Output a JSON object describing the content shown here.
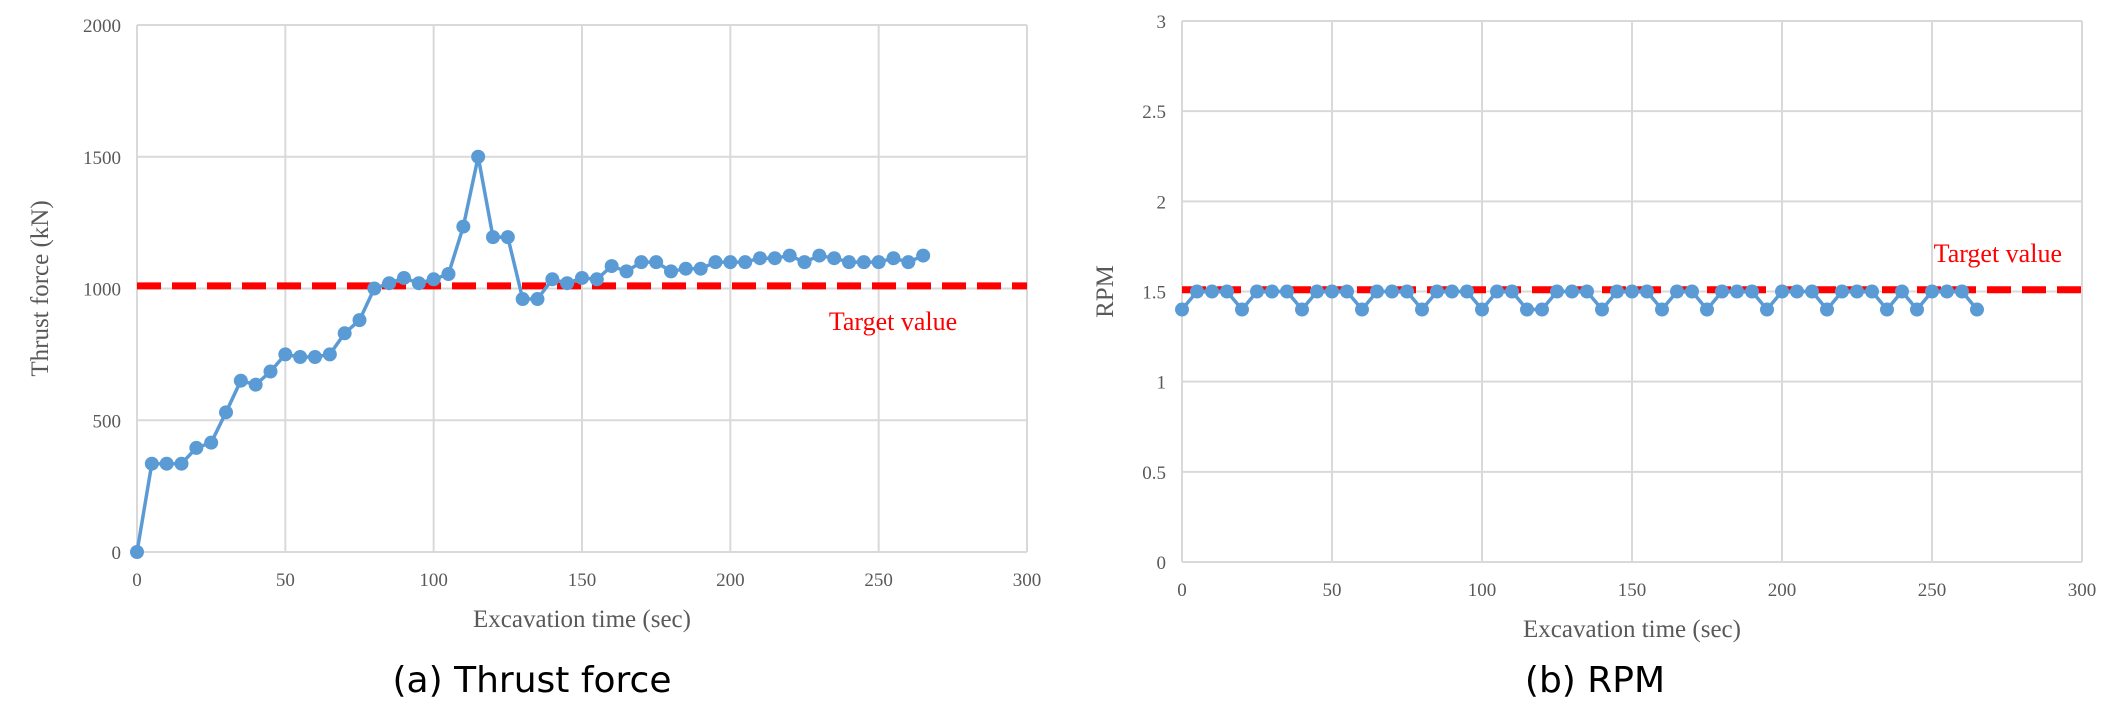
{
  "colors": {
    "series": "#5b9bd5",
    "target": "#ff0000",
    "grid": "#d9d9d9",
    "text": "#595959"
  },
  "chart_data": [
    {
      "type": "line",
      "caption": "(a) Thrust force",
      "xlabel": "Excavation time (sec)",
      "ylabel": "Thrust force (kN)",
      "xlim": [
        0,
        300
      ],
      "ylim": [
        0,
        2000
      ],
      "xticks": [
        "0",
        "50",
        "100",
        "150",
        "200",
        "250",
        "300"
      ],
      "yticks": [
        "0",
        "500",
        "1000",
        "1500",
        "2000"
      ],
      "grid": true,
      "target": {
        "label": "Target value",
        "value": 1010
      },
      "series": [
        {
          "x": [
            0,
            5,
            10,
            15,
            20,
            25,
            30,
            35,
            40,
            45,
            50,
            55,
            60,
            65,
            70,
            75,
            80,
            85,
            90,
            95,
            100,
            105,
            110,
            115,
            120,
            125,
            130,
            135,
            140,
            145,
            150,
            155,
            160,
            165,
            170,
            175,
            180,
            185,
            190,
            195,
            200,
            205,
            210,
            215,
            220,
            225,
            230,
            235,
            240,
            245,
            250,
            255,
            260,
            265
          ],
          "y": [
            0,
            335,
            335,
            335,
            395,
            415,
            530,
            650,
            635,
            685,
            750,
            740,
            740,
            750,
            830,
            880,
            1000,
            1020,
            1040,
            1020,
            1035,
            1055,
            1235,
            1500,
            1195,
            1195,
            960,
            960,
            1035,
            1020,
            1040,
            1035,
            1085,
            1065,
            1100,
            1100,
            1065,
            1075,
            1075,
            1100,
            1100,
            1100,
            1115,
            1115,
            1125,
            1100,
            1125,
            1115,
            1100,
            1100,
            1100,
            1115,
            1100,
            1125
          ]
        }
      ]
    },
    {
      "type": "line",
      "caption": "(b) RPM",
      "xlabel": "Excavation time (sec)",
      "ylabel": "RPM",
      "xlim": [
        0,
        300
      ],
      "ylim": [
        0,
        3
      ],
      "xticks": [
        "0",
        "50",
        "100",
        "150",
        "200",
        "250",
        "300"
      ],
      "yticks": [
        "0",
        "0.5",
        "1",
        "1.5",
        "2",
        "2.5",
        "3"
      ],
      "grid": true,
      "target": {
        "label": "Target value",
        "value": 1.51
      },
      "series": [
        {
          "x": [
            0,
            5,
            10,
            15,
            20,
            25,
            30,
            35,
            40,
            45,
            50,
            55,
            60,
            65,
            70,
            75,
            80,
            85,
            90,
            95,
            100,
            105,
            110,
            115,
            120,
            125,
            130,
            135,
            140,
            145,
            150,
            155,
            160,
            165,
            170,
            175,
            180,
            185,
            190,
            195,
            200,
            205,
            210,
            215,
            220,
            225,
            230,
            235,
            240,
            245,
            250,
            255,
            260,
            265
          ],
          "y": [
            1.4,
            1.5,
            1.5,
            1.5,
            1.4,
            1.5,
            1.5,
            1.5,
            1.4,
            1.5,
            1.5,
            1.5,
            1.4,
            1.5,
            1.5,
            1.5,
            1.4,
            1.5,
            1.5,
            1.5,
            1.4,
            1.5,
            1.5,
            1.4,
            1.4,
            1.5,
            1.5,
            1.5,
            1.4,
            1.5,
            1.5,
            1.5,
            1.4,
            1.5,
            1.5,
            1.4,
            1.5,
            1.5,
            1.5,
            1.4,
            1.5,
            1.5,
            1.5,
            1.4,
            1.5,
            1.5,
            1.5,
            1.4,
            1.5,
            1.4,
            1.5,
            1.5,
            1.5,
            1.4
          ]
        }
      ]
    }
  ]
}
